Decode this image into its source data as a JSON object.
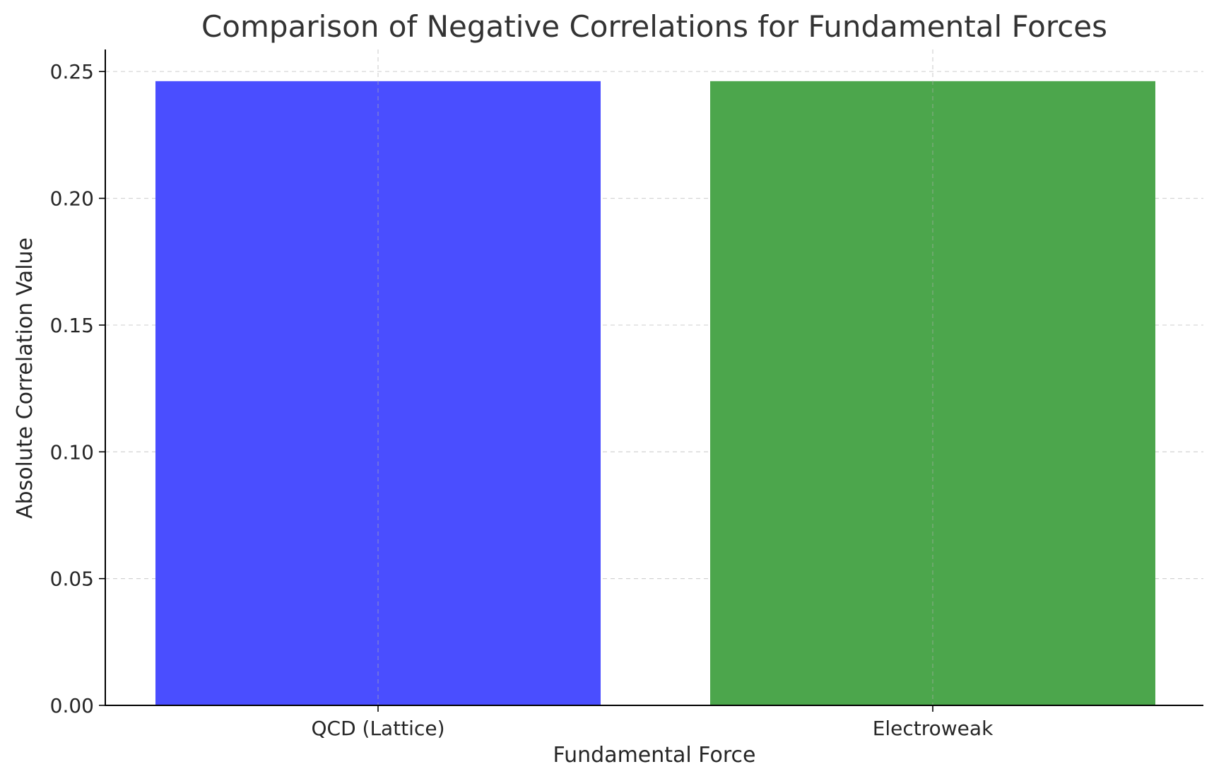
{
  "chart_data": {
    "type": "bar",
    "title": "Comparison of Negative Correlations for Fundamental Forces",
    "xlabel": "Fundamental Force",
    "ylabel": "Absolute Correlation Value",
    "categories": [
      "QCD (Lattice)",
      "Electroweak"
    ],
    "values": [
      0.2462,
      0.2462
    ],
    "colors": [
      "#4a4eff",
      "#4ca64c"
    ],
    "ylim": [
      0,
      0.2587
    ],
    "yticks": [
      0.0,
      0.05,
      0.1,
      0.15,
      0.2,
      0.25
    ],
    "ytick_labels": [
      "0.00",
      "0.05",
      "0.10",
      "0.15",
      "0.20",
      "0.25"
    ],
    "grid": true,
    "legend": "none"
  }
}
